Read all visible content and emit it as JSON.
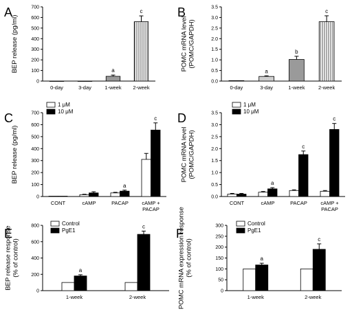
{
  "colors": {
    "black": "#000000",
    "white": "#ffffff",
    "gray": "#9a9a9a",
    "lightgray": "#cfcfcf",
    "hatch": "#555555"
  },
  "chart_data": [
    {
      "id": "A",
      "type": "bar",
      "letter": "A",
      "ylabel": "BEP release (pg/ml)",
      "categories": [
        "0-day",
        "3-day",
        "1-week",
        "2-week"
      ],
      "ylim": [
        0,
        700
      ],
      "yticks": [
        0,
        100,
        200,
        300,
        400,
        500,
        600,
        700
      ],
      "tick_labels": [
        "0",
        "100",
        "200",
        "300",
        "400",
        "500",
        "600",
        "700"
      ],
      "series": [
        {
          "values": [
            0,
            0,
            45,
            560
          ],
          "errors": [
            0,
            0,
            12,
            55
          ],
          "fills": [
            "white",
            "white",
            "gray",
            "hatch"
          ]
        }
      ],
      "sig": [
        "",
        "",
        "a",
        "c"
      ]
    },
    {
      "id": "B",
      "type": "bar",
      "letter": "B",
      "ylabel": "POMC mRNA level (POMC/GAPDH)",
      "categories": [
        "0-day",
        "3-day",
        "1-week",
        "2-week"
      ],
      "ylim": [
        0,
        3.5
      ],
      "yticks": [
        0,
        0.5,
        1,
        1.5,
        2,
        2.5,
        3,
        3.5
      ],
      "tick_labels": [
        "0.0",
        "0.5",
        "1.0",
        "1.5",
        "2.0",
        "2.5",
        "3.0",
        "3.5"
      ],
      "series": [
        {
          "values": [
            0.02,
            0.22,
            1.02,
            2.8
          ],
          "errors": [
            0,
            0.03,
            0.15,
            0.28
          ],
          "fills": [
            "white",
            "lightgray",
            "gray",
            "hatch"
          ]
        }
      ],
      "sig": [
        "",
        "a",
        "b",
        "c"
      ]
    },
    {
      "id": "C",
      "type": "bar",
      "letter": "C",
      "ylabel": "BEP release (pg/ml)",
      "categories": [
        "CONT",
        "cAMP",
        "PACAP",
        "cAMP +\nPACAP"
      ],
      "ylim": [
        0,
        700
      ],
      "yticks": [
        0,
        100,
        200,
        300,
        400,
        500,
        600,
        700
      ],
      "tick_labels": [
        "0",
        "100",
        "200",
        "300",
        "400",
        "500",
        "600",
        "700"
      ],
      "legend": [
        "1 μM",
        "10 μM"
      ],
      "series": [
        {
          "name": "1 μM",
          "values": [
            3,
            15,
            30,
            310
          ],
          "errors": [
            0,
            4,
            5,
            50
          ]
        },
        {
          "name": "10 μM",
          "values": [
            3,
            30,
            45,
            555
          ],
          "errors": [
            0,
            10,
            8,
            60
          ]
        }
      ],
      "sig": [
        [
          "",
          ""
        ],
        [
          "",
          ""
        ],
        [
          "",
          "a"
        ],
        [
          "",
          "c"
        ]
      ]
    },
    {
      "id": "D",
      "type": "bar",
      "letter": "D",
      "ylabel": "POMC mRNA level (POMC/GAPDH)",
      "categories": [
        "CONT",
        "cAMP",
        "PACAP",
        "cAMP +\nPACAP"
      ],
      "ylim": [
        0,
        3.5
      ],
      "yticks": [
        0,
        0.5,
        1,
        1.5,
        2,
        2.5,
        3,
        3.5
      ],
      "tick_labels": [
        "0.0",
        "0.5",
        "1.0",
        "1.5",
        "2.0",
        "2.5",
        "3.0",
        "3.5"
      ],
      "legend": [
        "1 μM",
        "10 μM"
      ],
      "series": [
        {
          "name": "1 μM",
          "values": [
            0.1,
            0.18,
            0.25,
            0.22
          ],
          "errors": [
            0.03,
            0.03,
            0.03,
            0.03
          ]
        },
        {
          "name": "10 μM",
          "values": [
            0.1,
            0.32,
            1.75,
            2.8
          ],
          "errors": [
            0.03,
            0.05,
            0.15,
            0.25
          ]
        }
      ],
      "sig": [
        [
          "",
          ""
        ],
        [
          "",
          "a"
        ],
        [
          "",
          "c"
        ],
        [
          "",
          "c"
        ]
      ]
    },
    {
      "id": "E",
      "type": "bar",
      "letter": "E",
      "ylabel": "BEP release response (% of control)",
      "categories": [
        "1-week",
        "2-week"
      ],
      "ylim": [
        0,
        800
      ],
      "yticks": [
        0,
        200,
        400,
        600,
        800
      ],
      "tick_labels": [
        "0",
        "200",
        "400",
        "600",
        "800"
      ],
      "legend": [
        "Control",
        "PgE1"
      ],
      "series": [
        {
          "name": "Control",
          "values": [
            100,
            100
          ],
          "errors": [
            0,
            0
          ]
        },
        {
          "name": "PgE1",
          "values": [
            180,
            690
          ],
          "errors": [
            15,
            40
          ]
        }
      ],
      "sig": [
        [
          "",
          "a"
        ],
        [
          "",
          "c"
        ]
      ]
    },
    {
      "id": "F",
      "type": "bar",
      "letter": "F",
      "ylabel": "POMC mRNA expression response (% of control)",
      "categories": [
        "1-week",
        "2-week"
      ],
      "ylim": [
        0,
        300
      ],
      "yticks": [
        0,
        50,
        100,
        150,
        200,
        250,
        300
      ],
      "tick_labels": [
        "0",
        "50",
        "100",
        "150",
        "200",
        "250",
        "300"
      ],
      "legend": [
        "Control",
        "PgE1"
      ],
      "series": [
        {
          "name": "Control",
          "values": [
            100,
            100
          ],
          "errors": [
            0,
            0
          ]
        },
        {
          "name": "PgE1",
          "values": [
            118,
            190
          ],
          "errors": [
            8,
            25
          ]
        }
      ],
      "sig": [
        [
          "",
          "a"
        ],
        [
          "",
          "c"
        ]
      ]
    }
  ]
}
